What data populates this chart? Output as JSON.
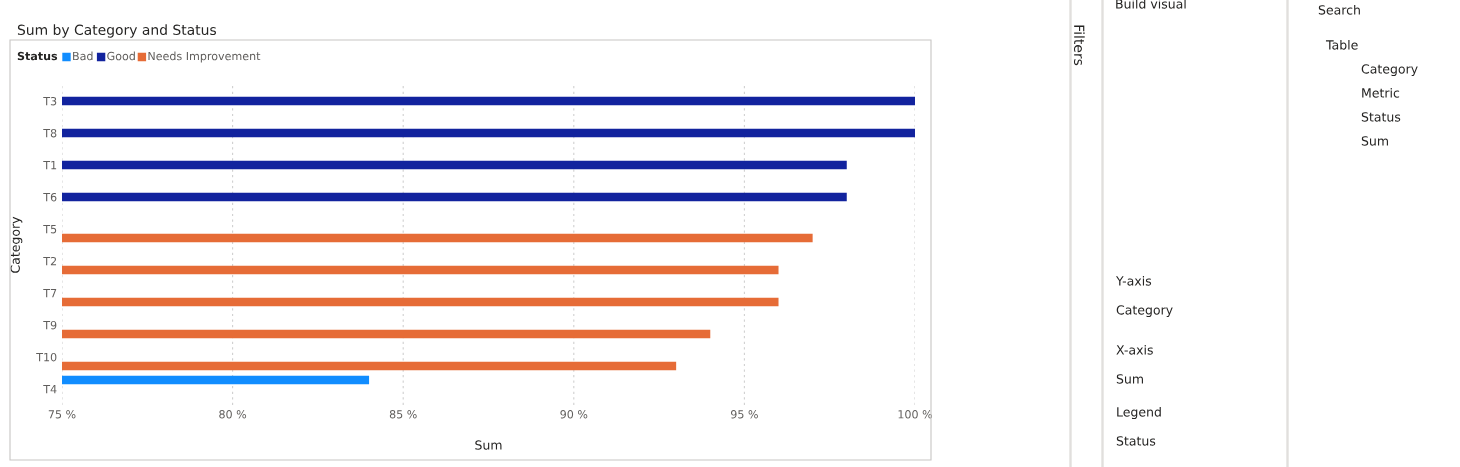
{
  "chart_data": [
    {
      "type": "bar",
      "orientation": "horizontal",
      "title": "Sum by Category and Status",
      "xlabel": "Sum",
      "ylabel": "Category",
      "legend_title": "Status",
      "legend": "top left",
      "grid": "x",
      "categories": [
        "T3",
        "T8",
        "T1",
        "T6",
        "T5",
        "T2",
        "T7",
        "T9",
        "T10",
        "T4"
      ],
      "series": [
        {
          "name": "Bad",
          "color": "#118dff",
          "values": [
            null,
            null,
            null,
            null,
            null,
            null,
            null,
            null,
            null,
            84
          ]
        },
        {
          "name": "Good",
          "color": "#12239e",
          "values": [
            100,
            100,
            98,
            98,
            null,
            null,
            null,
            null,
            null,
            null
          ]
        },
        {
          "name": "Needs Improvement",
          "color": "#e66c37",
          "values": [
            null,
            null,
            null,
            null,
            97,
            96,
            96,
            94,
            93,
            null
          ]
        }
      ],
      "xlim": [
        75,
        100
      ],
      "xticks": [
        {
          "value": 75,
          "label": "75 %"
        },
        {
          "value": 80,
          "label": "80 %"
        },
        {
          "value": 85,
          "label": "85 %"
        },
        {
          "value": 90,
          "label": "90 %"
        },
        {
          "value": 95,
          "label": "95 %"
        },
        {
          "value": 100,
          "label": "100 %"
        }
      ]
    },
    {
      "type": "other",
      "annotations": [
        "Filters",
        "Build visual",
        "Y-axis",
        "Category",
        "X-axis",
        "Sum",
        "Legend",
        "Status",
        "Search",
        "Table",
        "Category",
        "Metric",
        "Status",
        "Sum"
      ]
    }
  ]
}
